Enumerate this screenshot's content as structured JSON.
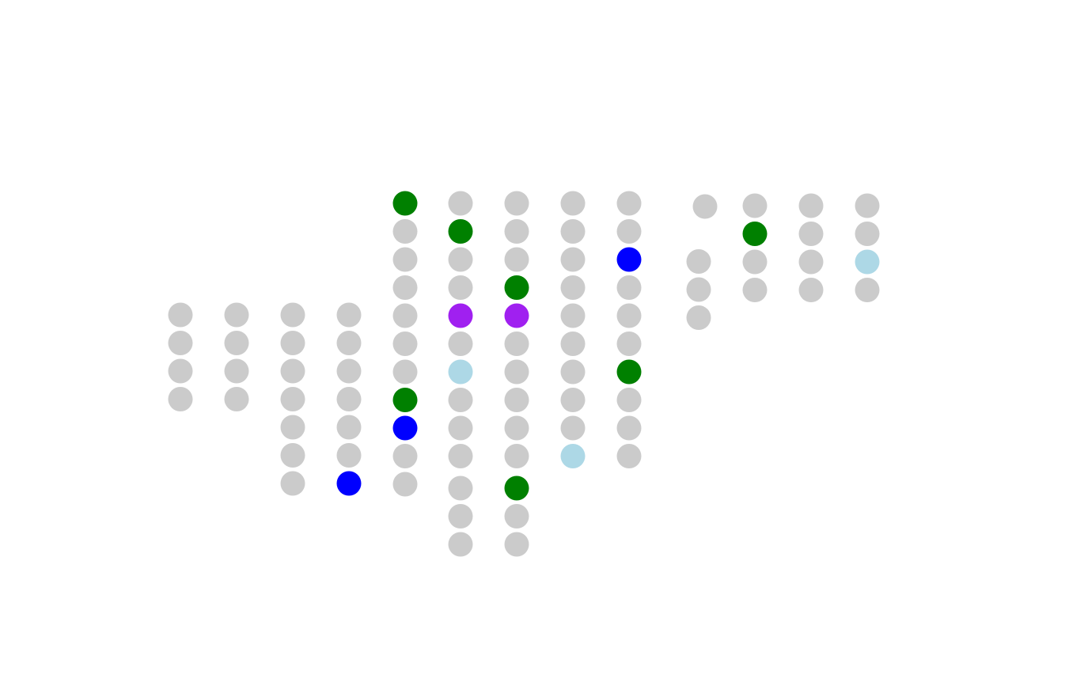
{
  "palette": {
    "gray": "#cbcbcb",
    "green": "#008000",
    "blue": "#0000ff",
    "purple": "#a020f0",
    "lightblue": "#add8e6"
  },
  "groups": [
    {
      "id": "left-block",
      "columns": [
        [
          "gray",
          "gray",
          "gray",
          "gray"
        ],
        [
          "gray",
          "gray",
          "gray",
          "gray"
        ],
        [
          "gray",
          "gray",
          "gray",
          "gray",
          "gray",
          "gray",
          "gray"
        ],
        [
          "gray",
          "gray",
          "gray",
          "gray",
          "gray",
          "gray",
          "blue"
        ],
        [
          "green",
          "gray",
          "gray",
          "gray",
          "gray",
          "gray",
          "gray",
          "green",
          "blue",
          "gray",
          "gray"
        ],
        [
          "gray",
          "green",
          "gray",
          "gray",
          "purple",
          "gray",
          "lightblue",
          "gray",
          "gray",
          "gray",
          "gray",
          "gray",
          "gray"
        ],
        [
          "gray",
          "gray",
          "gray",
          "green",
          "purple",
          "gray",
          "gray",
          "gray",
          "gray",
          "gray",
          "green",
          "gray",
          "gray"
        ],
        [
          "gray",
          "gray",
          "gray",
          "gray",
          "gray",
          "gray",
          "gray",
          "gray",
          "gray",
          "lightblue"
        ],
        [
          "gray",
          "gray",
          "blue",
          "gray",
          "gray",
          "gray",
          "green",
          "gray",
          "gray",
          "gray"
        ]
      ]
    },
    {
      "id": "right-block",
      "columns": [
        [
          "gray",
          "gray",
          "gray",
          "gray"
        ],
        [
          "gray",
          "green",
          "gray",
          "gray"
        ],
        [
          "gray",
          "gray",
          "gray",
          "gray"
        ],
        [
          "gray",
          "gray",
          "lightblue",
          "gray"
        ]
      ]
    }
  ]
}
